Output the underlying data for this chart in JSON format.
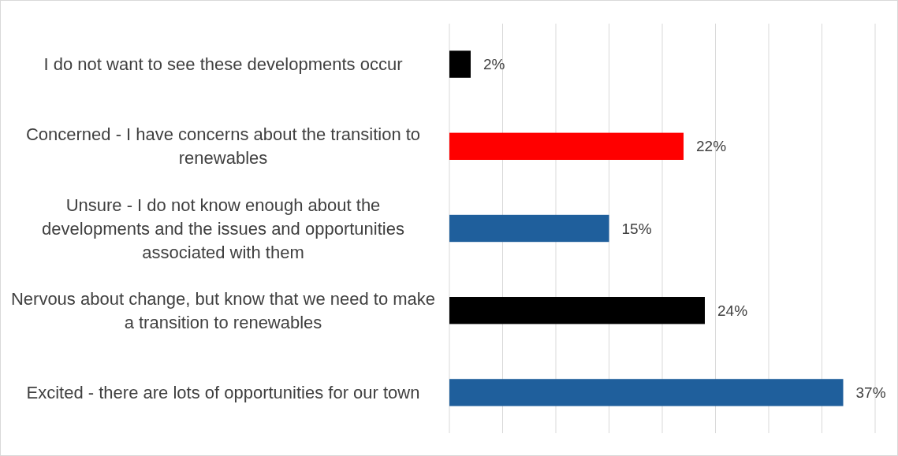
{
  "chart_data": {
    "type": "bar",
    "orientation": "horizontal",
    "categories": [
      "I do not want to see these developments occur",
      "Concerned - I have concerns about the transition to renewables",
      "Unsure - I do not know enough about the developments and the issues and opportunities associated with them",
      "Nervous about change, but know that we need to make a transition to renewables",
      "Excited - there are lots of opportunities for our town"
    ],
    "values": [
      2,
      22,
      15,
      24,
      37
    ],
    "colors": [
      "#000000",
      "#ff0000",
      "#1f5f9c",
      "#000000",
      "#1f5f9c"
    ],
    "value_labels": [
      "2%",
      "22%",
      "15%",
      "24%",
      "37%"
    ],
    "xlim": [
      0,
      40
    ],
    "xticks": [
      {
        "value": 0,
        "label": null
      },
      {
        "value": 5,
        "label": null
      },
      {
        "value": 10,
        "label": null
      },
      {
        "value": 15,
        "label": null
      },
      {
        "value": 20,
        "label": null
      },
      {
        "value": 25,
        "label": null
      },
      {
        "value": 30,
        "label": null
      },
      {
        "value": 35,
        "label": null
      },
      {
        "value": 40,
        "label": null
      }
    ],
    "tick_labels": "y",
    "grid": "x"
  }
}
